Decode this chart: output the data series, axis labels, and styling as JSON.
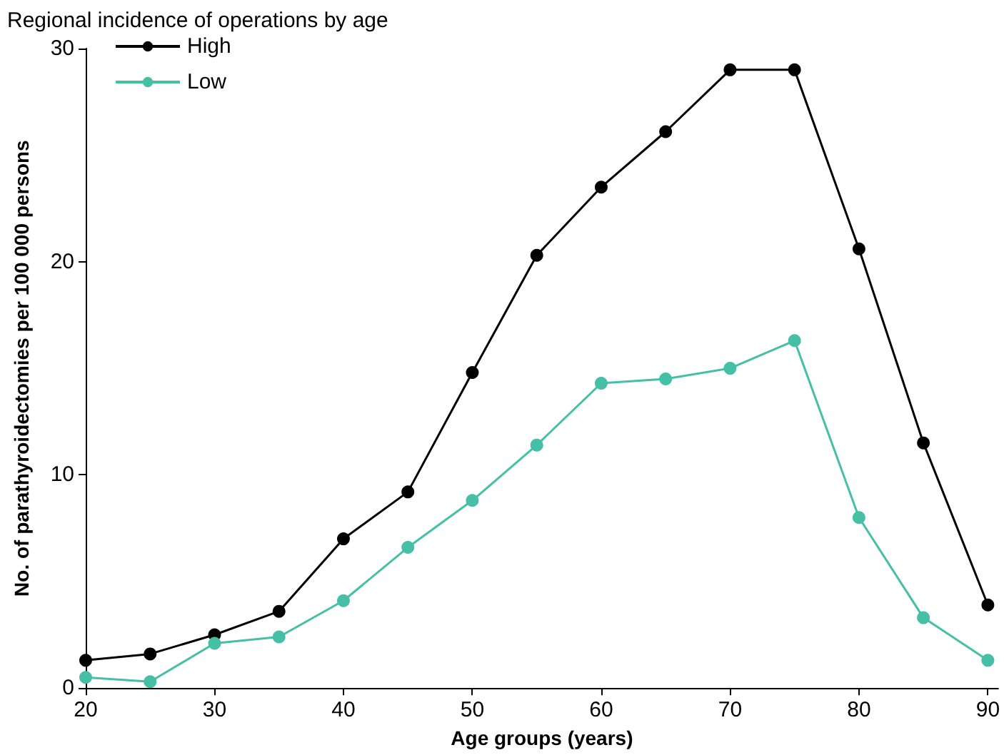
{
  "chart_data": {
    "type": "line",
    "title": "Regional incidence of operations by age",
    "xlabel": "Age groups (years)",
    "ylabel": "No. of parathyroidectomies per 100 000 persons",
    "x": [
      20,
      25,
      30,
      35,
      40,
      45,
      50,
      55,
      60,
      65,
      70,
      75,
      80,
      85,
      90
    ],
    "series": [
      {
        "name": "High",
        "color": "#000000",
        "values": [
          1.3,
          1.6,
          2.5,
          3.6,
          7.0,
          9.2,
          14.8,
          20.3,
          23.5,
          26.1,
          29.0,
          29.0,
          20.6,
          11.5,
          3.9
        ]
      },
      {
        "name": "Low",
        "color": "#45bfa6",
        "values": [
          0.5,
          0.3,
          2.1,
          2.4,
          4.1,
          6.6,
          8.8,
          11.4,
          14.3,
          14.5,
          15.0,
          16.3,
          8.0,
          3.3,
          1.3
        ]
      }
    ],
    "xlim": [
      20,
      90.8
    ],
    "xticks": [
      20,
      30,
      40,
      50,
      60,
      70,
      80,
      90
    ],
    "ylim": [
      0,
      30
    ],
    "yticks": [
      0,
      10,
      20,
      30
    ],
    "grid": false,
    "legend": "top left",
    "marker": "circle",
    "line_style": "solid"
  }
}
